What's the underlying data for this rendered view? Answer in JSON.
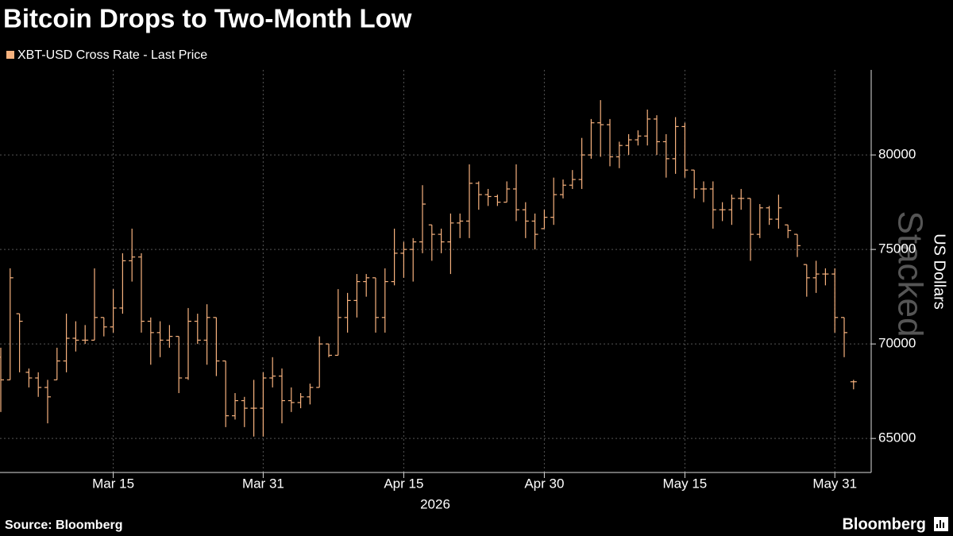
{
  "chart_data": {
    "type": "ohlc",
    "title": "Bitcoin Drops to Two-Month Low",
    "ylabel": "US Dollars",
    "xlabel": "2026",
    "watermark": "Stacked",
    "source": "Source: Bloomberg",
    "brand": "Bloomberg",
    "x": [
      "2026-03-03",
      "2026-03-04",
      "2026-03-05",
      "2026-03-06",
      "2026-03-07",
      "2026-03-08",
      "2026-03-09",
      "2026-03-10",
      "2026-03-11",
      "2026-03-12",
      "2026-03-13",
      "2026-03-14",
      "2026-03-15",
      "2026-03-16",
      "2026-03-17",
      "2026-03-18",
      "2026-03-19",
      "2026-03-20",
      "2026-03-21",
      "2026-03-22",
      "2026-03-23",
      "2026-03-24",
      "2026-03-25",
      "2026-03-26",
      "2026-03-27",
      "2026-03-28",
      "2026-03-29",
      "2026-03-30",
      "2026-03-31",
      "2026-04-01",
      "2026-04-02",
      "2026-04-03",
      "2026-04-04",
      "2026-04-05",
      "2026-04-06",
      "2026-04-07",
      "2026-04-08",
      "2026-04-09",
      "2026-04-10",
      "2026-04-11",
      "2026-04-12",
      "2026-04-13",
      "2026-04-14",
      "2026-04-15",
      "2026-04-16",
      "2026-04-17",
      "2026-04-18",
      "2026-04-19",
      "2026-04-20",
      "2026-04-21",
      "2026-04-22",
      "2026-04-23",
      "2026-04-24",
      "2026-04-25",
      "2026-04-26",
      "2026-04-27",
      "2026-04-28",
      "2026-04-29",
      "2026-04-30",
      "2026-05-01",
      "2026-05-02",
      "2026-05-03",
      "2026-05-04",
      "2026-05-05",
      "2026-05-06",
      "2026-05-07",
      "2026-05-08",
      "2026-05-09",
      "2026-05-10",
      "2026-05-11",
      "2026-05-12",
      "2026-05-13",
      "2026-05-14",
      "2026-05-15",
      "2026-05-16",
      "2026-05-17",
      "2026-05-18",
      "2026-05-19",
      "2026-05-20",
      "2026-05-21",
      "2026-05-22",
      "2026-05-23",
      "2026-05-24",
      "2026-05-25",
      "2026-05-26",
      "2026-05-27",
      "2026-05-28",
      "2026-05-29",
      "2026-05-30",
      "2026-05-31",
      "2026-06-01",
      "2026-06-02"
    ],
    "series": [
      {
        "name": "XBT-USD Cross Rate - Last Price",
        "color": "#f7b27e",
        "open": [
          69300,
          68100,
          71600,
          68500,
          68200,
          67700,
          68100,
          69100,
          70300,
          70200,
          70200,
          71400,
          70900,
          71900,
          74400,
          74600,
          71200,
          70600,
          70200,
          70400,
          68200,
          71200,
          70200,
          71400,
          69100,
          66200,
          67000,
          66600,
          66600,
          68200,
          68300,
          67000,
          66900,
          67200,
          67700,
          70000,
          69400,
          71400,
          72300,
          73300,
          73500,
          71400,
          73300,
          74800,
          75000,
          75400,
          76300,
          75800,
          75400,
          76400,
          76500,
          78500,
          77900,
          77800,
          77500,
          78200,
          77100,
          76500,
          76100,
          76700,
          77900,
          78400,
          78700,
          80000,
          81700,
          81600,
          79900,
          80500,
          80800,
          81000,
          81900,
          80700,
          79800,
          81500,
          79200,
          78200,
          78200,
          77100,
          77100,
          77700,
          77700,
          75800,
          77200,
          76600,
          76300,
          75800,
          74200,
          73500,
          73700,
          73700,
          71400,
          68000
        ],
        "high": [
          69800,
          74000,
          71600,
          68700,
          68500,
          68100,
          69800,
          71600,
          71200,
          71000,
          74000,
          71400,
          72900,
          74800,
          76100,
          74800,
          71400,
          71200,
          71000,
          70400,
          71900,
          71600,
          72100,
          71400,
          69100,
          67400,
          67200,
          68100,
          68500,
          69300,
          68700,
          67700,
          67400,
          67900,
          70400,
          70000,
          72900,
          72700,
          73700,
          73700,
          73500,
          74000,
          76100,
          75400,
          75600,
          78400,
          76300,
          76100,
          76900,
          76900,
          79500,
          78600,
          78200,
          77900,
          78600,
          79500,
          77500,
          76900,
          77100,
          78800,
          78700,
          79200,
          80900,
          81900,
          82900,
          81900,
          80700,
          81100,
          81300,
          82400,
          82100,
          81100,
          82000,
          81700,
          79200,
          78600,
          78600,
          77500,
          77900,
          78200,
          77700,
          77400,
          77300,
          77900,
          76300,
          75800,
          74200,
          74400,
          74000,
          74000,
          71400,
          68100
        ],
        "low": [
          66400,
          68100,
          68500,
          67700,
          67200,
          65800,
          68100,
          68500,
          69600,
          70000,
          70200,
          70400,
          70600,
          71600,
          73300,
          70600,
          68900,
          69300,
          69800,
          67400,
          68100,
          70000,
          68900,
          68300,
          65600,
          66000,
          65600,
          65100,
          65100,
          67700,
          65800,
          66400,
          66600,
          66800,
          67700,
          69300,
          69400,
          70600,
          71400,
          72500,
          70600,
          70600,
          73100,
          73500,
          73300,
          74800,
          74400,
          74800,
          73700,
          75600,
          75600,
          77100,
          77300,
          77300,
          77500,
          76500,
          75600,
          75000,
          76100,
          76300,
          77700,
          78200,
          78200,
          79800,
          79900,
          79400,
          79300,
          80000,
          80500,
          80500,
          80000,
          78800,
          79000,
          78800,
          77700,
          77500,
          76100,
          76500,
          76300,
          77100,
          74400,
          75600,
          76300,
          76100,
          75600,
          74600,
          72500,
          72700,
          73100,
          70600,
          69300,
          67600
        ],
        "close": [
          68100,
          73500,
          71200,
          68200,
          67700,
          67200,
          69100,
          70300,
          70200,
          70200,
          71400,
          70900,
          71900,
          74400,
          74600,
          71200,
          70600,
          70200,
          70400,
          68200,
          71200,
          70200,
          71400,
          69100,
          66200,
          67000,
          66600,
          66600,
          68200,
          68300,
          67000,
          66900,
          67200,
          67700,
          70000,
          69400,
          71400,
          72300,
          73300,
          73500,
          71400,
          73300,
          74800,
          75000,
          75400,
          77400,
          75800,
          75400,
          76400,
          76500,
          78500,
          77900,
          77800,
          77500,
          78200,
          77100,
          76500,
          75800,
          76700,
          77900,
          78400,
          78700,
          80000,
          81700,
          81600,
          79900,
          80500,
          80800,
          81000,
          81900,
          80700,
          79800,
          81500,
          79200,
          78200,
          78200,
          77100,
          77100,
          77700,
          77700,
          75800,
          77200,
          76600,
          77200,
          76000,
          75200,
          73500,
          73700,
          73700,
          71400,
          70600,
          68000
        ]
      }
    ],
    "ylim": [
      63200,
      84500
    ],
    "yticks": [
      65000,
      70000,
      75000,
      80000
    ],
    "xticks": [
      {
        "value": "2026-03-15",
        "label": "Mar 15"
      },
      {
        "value": "2026-03-31",
        "label": "Mar 31"
      },
      {
        "value": "2026-04-15",
        "label": "Apr 15"
      },
      {
        "value": "2026-04-30",
        "label": "Apr 30"
      },
      {
        "value": "2026-05-15",
        "label": "May 15"
      },
      {
        "value": "2026-05-31",
        "label": "May 31"
      }
    ],
    "grid": true
  }
}
